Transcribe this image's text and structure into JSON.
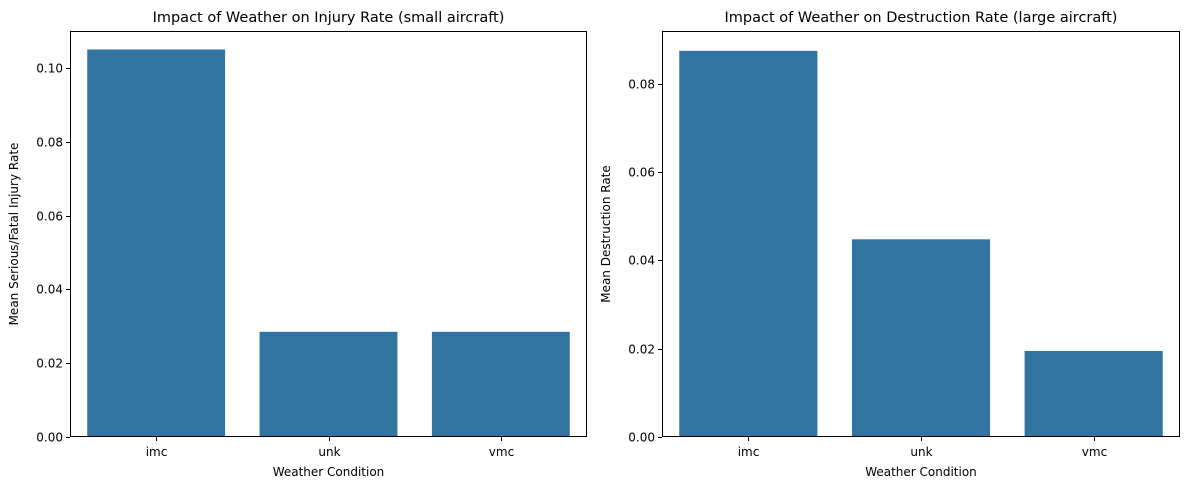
{
  "chart_data": [
    {
      "type": "bar",
      "title": "Impact of Weather on Injury Rate (small aircraft)",
      "xlabel": "Weather Condition",
      "ylabel": "Mean Serious/Fatal Injury Rate",
      "categories": [
        "imc",
        "unk",
        "vmc"
      ],
      "values": [
        0.105,
        0.0285,
        0.0285
      ],
      "ylim": [
        0,
        0.11
      ],
      "yticks": [
        0.0,
        0.02,
        0.04,
        0.06,
        0.08,
        0.1
      ],
      "ytick_labels": [
        "0.00",
        "0.02",
        "0.04",
        "0.06",
        "0.08",
        "0.10"
      ],
      "bar_color": "#3274a1",
      "grid": false,
      "legend": "none"
    },
    {
      "type": "bar",
      "title": "Impact of Weather on Destruction Rate (large aircraft)",
      "xlabel": "Weather Condition",
      "ylabel": "Mean Destruction Rate",
      "categories": [
        "imc",
        "unk",
        "vmc"
      ],
      "values": [
        0.0875,
        0.0448,
        0.0195
      ],
      "ylim": [
        0,
        0.092
      ],
      "yticks": [
        0.0,
        0.02,
        0.04,
        0.06,
        0.08
      ],
      "ytick_labels": [
        "0.00",
        "0.02",
        "0.04",
        "0.06",
        "0.08"
      ],
      "bar_color": "#3274a1",
      "grid": false,
      "legend": "none"
    }
  ]
}
